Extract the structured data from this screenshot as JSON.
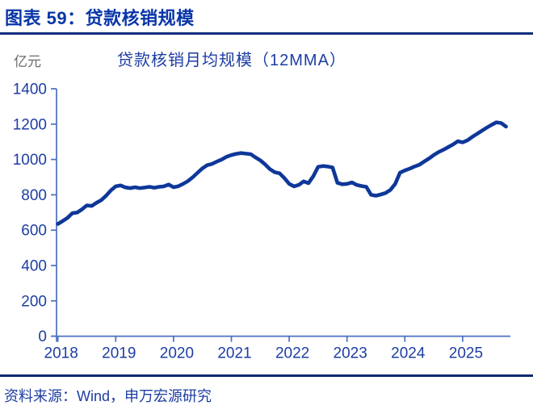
{
  "header": {
    "title": "图表 59：贷款核销规模"
  },
  "chart": {
    "unit_label": "亿元",
    "title": "贷款核销月均规模（12MMA）"
  },
  "footer": {
    "source": "资料来源：Wind，申万宏源研究"
  },
  "colors": {
    "header_blue": "#0835A8",
    "underline_navy": "#122C7D",
    "title_blue": "#1D3DA3",
    "tick_label_blue": "#1D3DA3",
    "line_navy": "#0E3799",
    "axis_blue": "#4A6FC4",
    "unit_gray": "#6B6B6B",
    "rule_navy": "#0A2B6E"
  },
  "chart_data": {
    "type": "line",
    "title": "贷款核销月均规模（12MMA）",
    "ylabel": "亿元",
    "legend": "none",
    "grid": false,
    "ylim": [
      0,
      1400
    ],
    "y_ticks": [
      0,
      200,
      400,
      600,
      800,
      1000,
      1200,
      1400
    ],
    "x_tick_labels": [
      "2018",
      "2019",
      "2020",
      "2021",
      "2022",
      "2023",
      "2024",
      "2025"
    ],
    "x_start_year": 2018,
    "x_step": "monthly",
    "series": [
      {
        "name": "贷款核销月均规模(12MMA)",
        "monthly_values": [
          635,
          652,
          670,
          696,
          700,
          718,
          740,
          737,
          755,
          770,
          795,
          825,
          848,
          853,
          842,
          838,
          843,
          838,
          841,
          845,
          840,
          845,
          848,
          858,
          843,
          849,
          862,
          878,
          900,
          925,
          950,
          968,
          975,
          988,
          1000,
          1015,
          1025,
          1032,
          1036,
          1033,
          1030,
          1012,
          995,
          972,
          945,
          928,
          922,
          895,
          862,
          848,
          856,
          876,
          866,
          905,
          958,
          963,
          960,
          955,
          868,
          860,
          862,
          870,
          856,
          850,
          845,
          800,
          795,
          802,
          810,
          828,
          862,
          925,
          938,
          948,
          960,
          970,
          988,
          1005,
          1025,
          1042,
          1055,
          1070,
          1085,
          1103,
          1097,
          1108,
          1128,
          1145,
          1163,
          1180,
          1196,
          1210,
          1206,
          1186
        ]
      }
    ]
  }
}
